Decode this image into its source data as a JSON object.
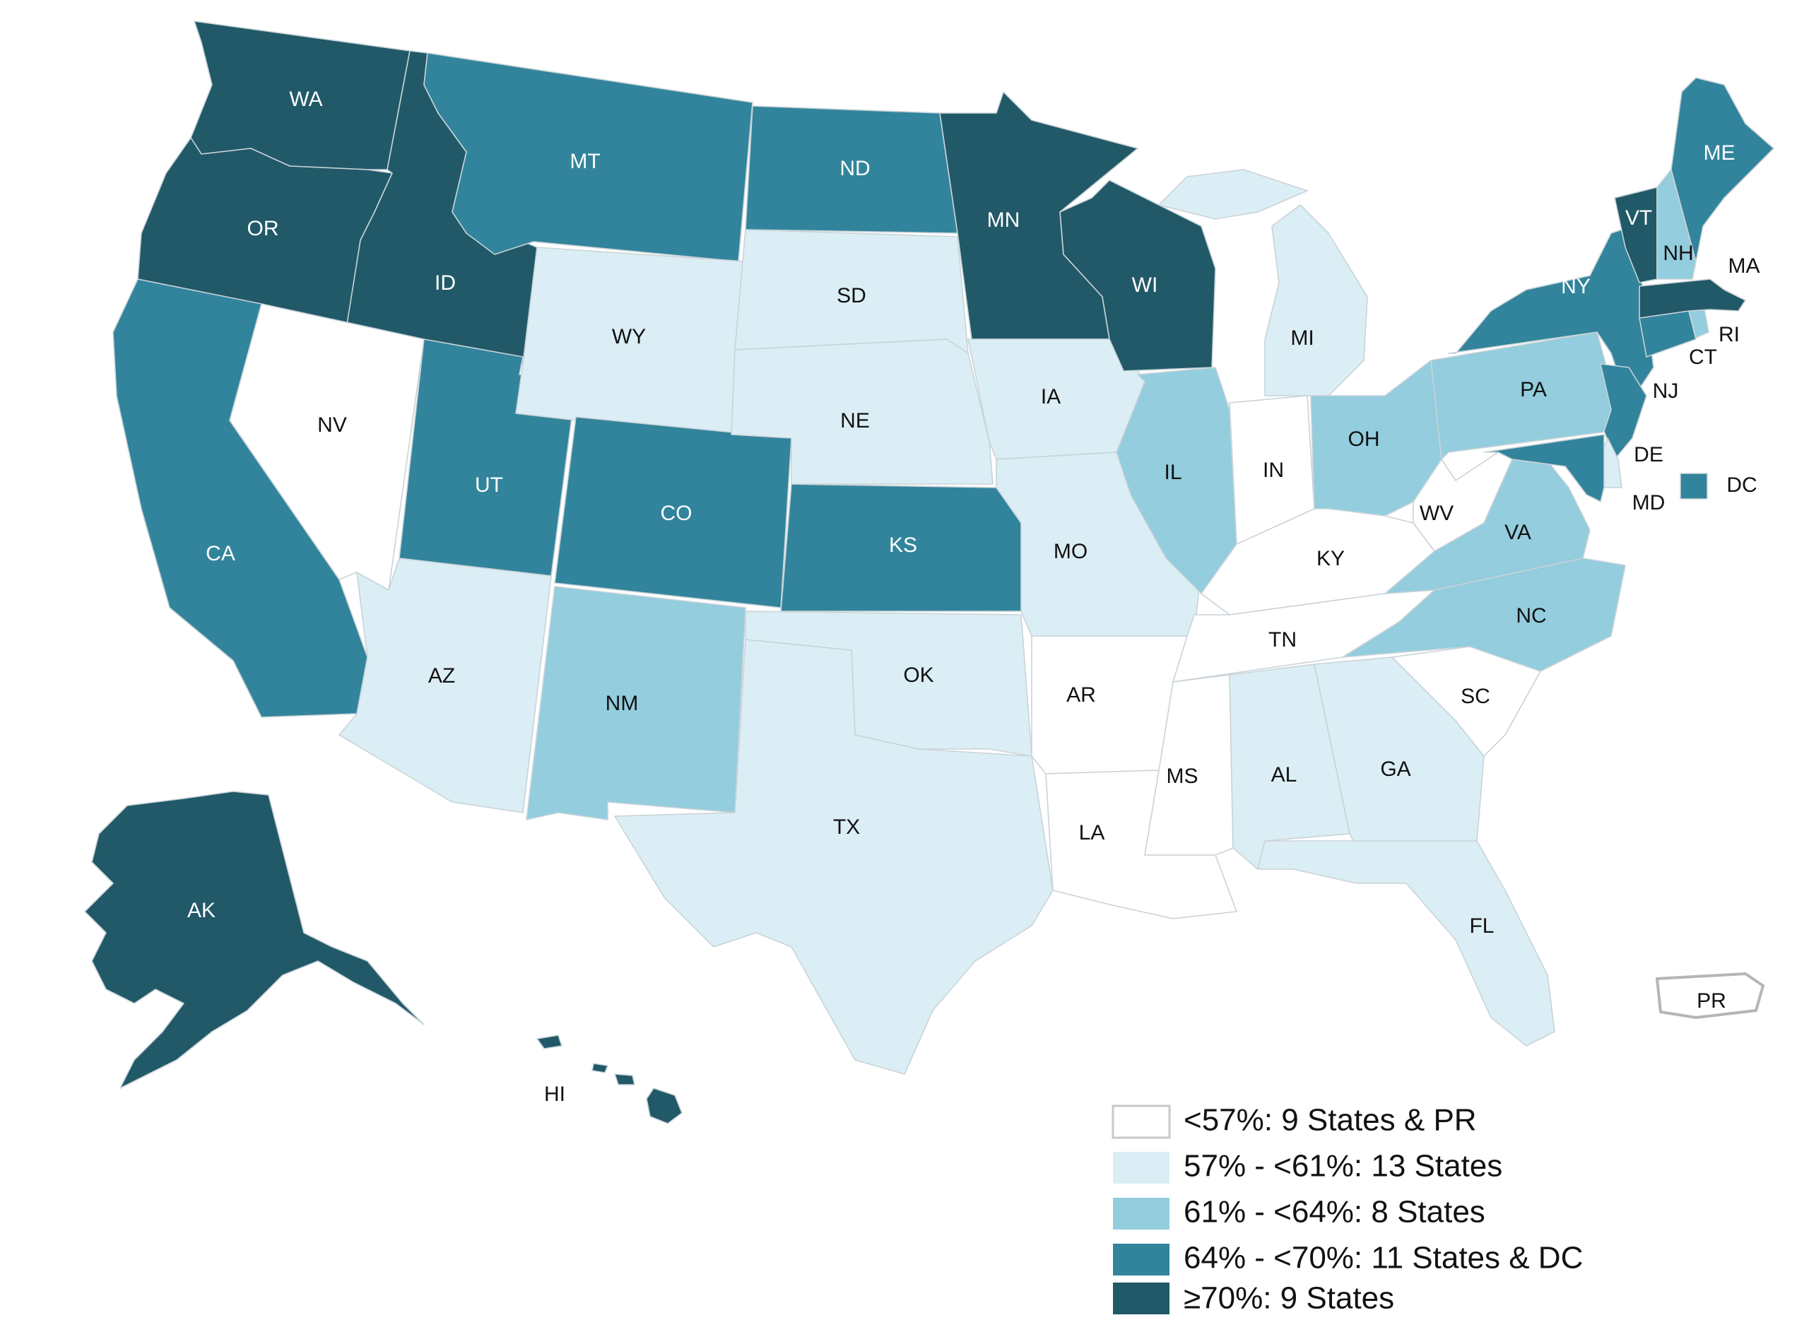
{
  "colors": {
    "c1": "#ffffff",
    "c2": "#dbeef5",
    "c3": "#93cdde",
    "c4": "#31849b",
    "c5": "#215968"
  },
  "legend": [
    {
      "key": "c1",
      "label": "<57%: 9 States & PR"
    },
    {
      "key": "c2",
      "label": "57% - <61%: 13 States"
    },
    {
      "key": "c3",
      "label": "61% - <64%: 8 States"
    },
    {
      "key": "c4",
      "label": "64% - <70%: 11 States & DC"
    },
    {
      "key": "c5",
      "label": "≥70%: 9 States"
    }
  ],
  "states": {
    "WA": {
      "label": "WA",
      "bin": "c5"
    },
    "OR": {
      "label": "OR",
      "bin": "c5"
    },
    "ID": {
      "label": "ID",
      "bin": "c5"
    },
    "MN": {
      "label": "MN",
      "bin": "c5"
    },
    "WI": {
      "label": "WI",
      "bin": "c5"
    },
    "VT": {
      "label": "VT",
      "bin": "c5"
    },
    "MA": {
      "label": "MA",
      "bin": "c5"
    },
    "AK": {
      "label": "AK",
      "bin": "c5"
    },
    "HI": {
      "label": "HI",
      "bin": "c5"
    },
    "MT": {
      "label": "MT",
      "bin": "c4"
    },
    "ND": {
      "label": "ND",
      "bin": "c4"
    },
    "CA": {
      "label": "CA",
      "bin": "c4"
    },
    "UT": {
      "label": "UT",
      "bin": "c4"
    },
    "CO": {
      "label": "CO",
      "bin": "c4"
    },
    "KS": {
      "label": "KS",
      "bin": "c4"
    },
    "NY": {
      "label": "NY",
      "bin": "c4"
    },
    "ME": {
      "label": "ME",
      "bin": "c4"
    },
    "NJ": {
      "label": "NJ",
      "bin": "c4"
    },
    "CT": {
      "label": "CT",
      "bin": "c4"
    },
    "MD": {
      "label": "MD",
      "bin": "c4"
    },
    "DC": {
      "label": "DC",
      "bin": "c4"
    },
    "NM": {
      "label": "NM",
      "bin": "c3"
    },
    "IL": {
      "label": "IL",
      "bin": "c3"
    },
    "OH": {
      "label": "OH",
      "bin": "c3"
    },
    "PA": {
      "label": "PA",
      "bin": "c3"
    },
    "VA": {
      "label": "VA",
      "bin": "c3"
    },
    "NC": {
      "label": "NC",
      "bin": "c3"
    },
    "NH": {
      "label": "NH",
      "bin": "c3"
    },
    "RI": {
      "label": "RI",
      "bin": "c3"
    },
    "WY": {
      "label": "WY",
      "bin": "c2"
    },
    "SD": {
      "label": "SD",
      "bin": "c2"
    },
    "NE": {
      "label": "NE",
      "bin": "c2"
    },
    "IA": {
      "label": "IA",
      "bin": "c2"
    },
    "MO": {
      "label": "MO",
      "bin": "c2"
    },
    "OK": {
      "label": "OK",
      "bin": "c2"
    },
    "TX": {
      "label": "TX",
      "bin": "c2"
    },
    "AZ": {
      "label": "AZ",
      "bin": "c2"
    },
    "MI": {
      "label": "MI",
      "bin": "c2"
    },
    "AL": {
      "label": "AL",
      "bin": "c2"
    },
    "GA": {
      "label": "GA",
      "bin": "c2"
    },
    "FL": {
      "label": "FL",
      "bin": "c2"
    },
    "DE": {
      "label": "DE",
      "bin": "c2"
    },
    "NV": {
      "label": "NV",
      "bin": "c1"
    },
    "AR": {
      "label": "AR",
      "bin": "c1"
    },
    "LA": {
      "label": "LA",
      "bin": "c1"
    },
    "MS": {
      "label": "MS",
      "bin": "c1"
    },
    "TN": {
      "label": "TN",
      "bin": "c1"
    },
    "KY": {
      "label": "KY",
      "bin": "c1"
    },
    "IN": {
      "label": "IN",
      "bin": "c1"
    },
    "WV": {
      "label": "WV",
      "bin": "c1"
    },
    "SC": {
      "label": "SC",
      "bin": "c1"
    },
    "PR": {
      "label": "PR",
      "bin": "c1"
    }
  }
}
